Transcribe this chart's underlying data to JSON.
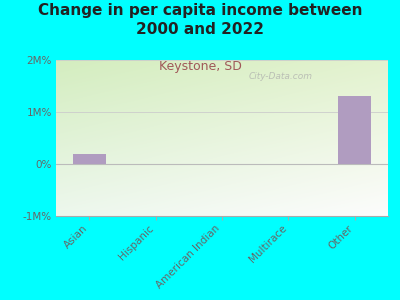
{
  "title": "Change in per capita income between\n2000 and 2022",
  "subtitle": "Keystone, SD",
  "categories": [
    "Asian",
    "Hispanic",
    "American Indian",
    "Multirace",
    "Other"
  ],
  "values": [
    200000,
    0,
    0,
    0,
    1300000
  ],
  "bar_color": "#b09cc0",
  "background_color": "#00FFFF",
  "title_fontsize": 11,
  "title_color": "#222222",
  "subtitle_fontsize": 9,
  "subtitle_color": "#a05858",
  "tick_label_color": "#666666",
  "ylim": [
    -1000000,
    2000000
  ],
  "yticks": [
    -1000000,
    0,
    1000000,
    2000000
  ],
  "ytick_labels": [
    "-1M%",
    "0%",
    "1M%",
    "2M%"
  ],
  "watermark": "City-Data.com",
  "plot_grad_colors": [
    "#d4e8c0",
    "#eef6e8",
    "#f8fdf4"
  ],
  "bar_width": 0.5
}
